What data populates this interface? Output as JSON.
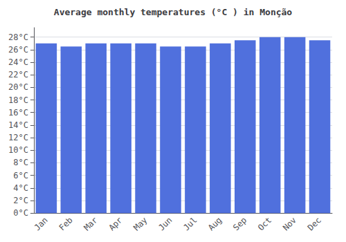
{
  "chart_data": {
    "type": "bar",
    "title": "Average monthly temperatures (°C ) in Monção",
    "categories": [
      "Jan",
      "Feb",
      "Mar",
      "Apr",
      "May",
      "Jun",
      "Jul",
      "Aug",
      "Sep",
      "Oct",
      "Nov",
      "Dec"
    ],
    "values": [
      27.0,
      26.5,
      27.0,
      27.0,
      27.0,
      26.5,
      26.5,
      27.0,
      27.5,
      28.0,
      28.0,
      27.5
    ],
    "ylim": [
      0,
      29.5
    ],
    "yticks": [
      {
        "value": 0,
        "label": "0°C"
      },
      {
        "value": 2,
        "label": "2°C"
      },
      {
        "value": 4,
        "label": "4°C"
      },
      {
        "value": 6,
        "label": "6°C"
      },
      {
        "value": 8,
        "label": "8°C"
      },
      {
        "value": 10,
        "label": "10°C"
      },
      {
        "value": 12,
        "label": "12°C"
      },
      {
        "value": 14,
        "label": "14°C"
      },
      {
        "value": 16,
        "label": "16°C"
      },
      {
        "value": 18,
        "label": "18°C"
      },
      {
        "value": 20,
        "label": "20°C"
      },
      {
        "value": 22,
        "label": "22°C"
      },
      {
        "value": 24,
        "label": "24°C"
      },
      {
        "value": 26,
        "label": "26°C"
      },
      {
        "value": 28,
        "label": "28°C"
      }
    ],
    "grid": true
  }
}
